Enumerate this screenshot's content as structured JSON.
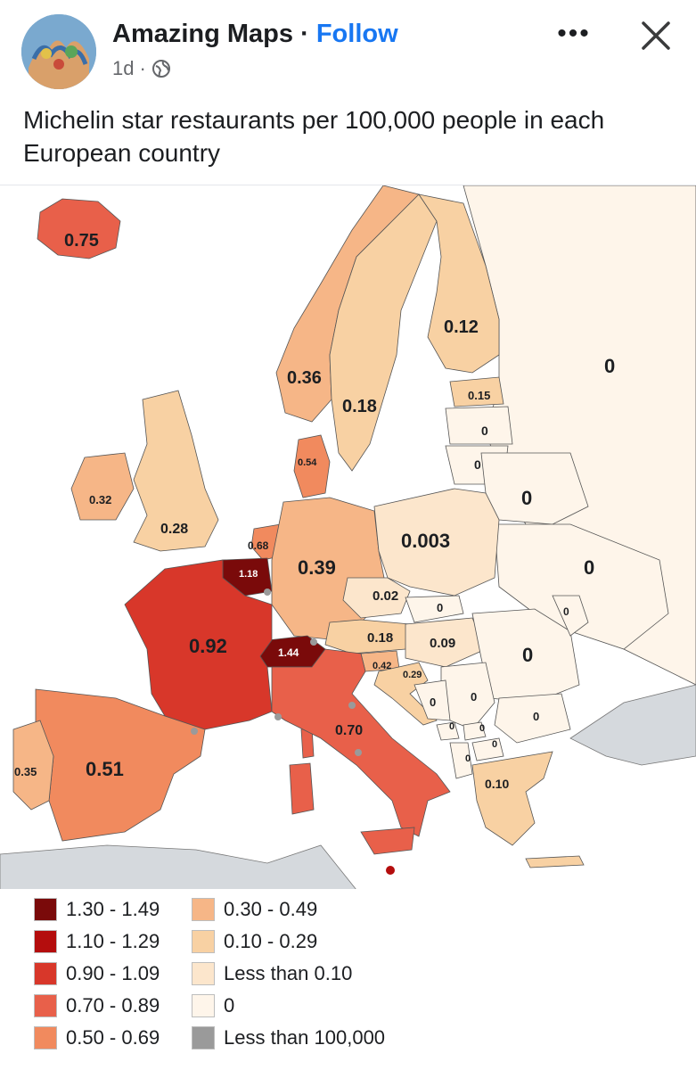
{
  "post": {
    "author": "Amazing Maps",
    "separator": "·",
    "follow_label": "Follow",
    "time": "1d",
    "time_separator": "·",
    "privacy_icon": "globe-icon",
    "more_icon": "more-icon",
    "more_label": "•••",
    "close_icon": "close-icon",
    "caption": "Michelin star restaurants per 100,000 people in each European country"
  },
  "map": {
    "labels": [
      {
        "id": "iceland",
        "text": "0.75"
      },
      {
        "id": "norway",
        "text": "0.36"
      },
      {
        "id": "sweden",
        "text": "0.18"
      },
      {
        "id": "finland",
        "text": "0.12"
      },
      {
        "id": "russia",
        "text": "0"
      },
      {
        "id": "estonia",
        "text": "0.15"
      },
      {
        "id": "latvia",
        "text": "0"
      },
      {
        "id": "lithuania",
        "text": "0"
      },
      {
        "id": "denmark",
        "text": "0.54"
      },
      {
        "id": "ireland",
        "text": "0.32"
      },
      {
        "id": "uk",
        "text": "0.28"
      },
      {
        "id": "netherlands",
        "text": "0.68"
      },
      {
        "id": "belgium",
        "text": "1.18"
      },
      {
        "id": "germany",
        "text": "0.39"
      },
      {
        "id": "poland",
        "text": "0.003"
      },
      {
        "id": "belarus",
        "text": "0"
      },
      {
        "id": "ukraine",
        "text": "0"
      },
      {
        "id": "czechia",
        "text": "0.02"
      },
      {
        "id": "slovakia",
        "text": "0"
      },
      {
        "id": "austria",
        "text": "0.18"
      },
      {
        "id": "hungary",
        "text": "0.09"
      },
      {
        "id": "moldova",
        "text": "0"
      },
      {
        "id": "romania",
        "text": "0"
      },
      {
        "id": "switzerland",
        "text": "1.44"
      },
      {
        "id": "slovenia",
        "text": "0.42"
      },
      {
        "id": "croatia",
        "text": "0.29"
      },
      {
        "id": "bosnia",
        "text": "0"
      },
      {
        "id": "serbia",
        "text": "0"
      },
      {
        "id": "bulgaria",
        "text": "0"
      },
      {
        "id": "montenegro",
        "text": "0"
      },
      {
        "id": "kosovo",
        "text": "0"
      },
      {
        "id": "macedonia",
        "text": "0"
      },
      {
        "id": "albania",
        "text": "0"
      },
      {
        "id": "france",
        "text": "0.92"
      },
      {
        "id": "italy",
        "text": "0.70"
      },
      {
        "id": "spain",
        "text": "0.51"
      },
      {
        "id": "portugal",
        "text": "0.35"
      },
      {
        "id": "greece",
        "text": "0.10"
      }
    ],
    "colors": {
      "c1": "#7a0a0a",
      "c2": "#b40d0d",
      "c3": "#d8372a",
      "c4": "#e8604a",
      "c5": "#f18a5e",
      "c6": "#f6b687",
      "c7": "#f8d1a3",
      "c8": "#fce6cc",
      "c9": "#fef5ea",
      "c10": "#9a9a9a",
      "sea": "#ffffff",
      "other": "#d5d9dd"
    }
  },
  "legend": {
    "items": [
      {
        "label": "1.30 - 1.49",
        "color": "#7a0a0a"
      },
      {
        "label": "1.10 - 1.29",
        "color": "#b40d0d"
      },
      {
        "label": "0.90 - 1.09",
        "color": "#d8372a"
      },
      {
        "label": "0.70 - 0.89",
        "color": "#e8604a"
      },
      {
        "label": "0.50 - 0.69",
        "color": "#f18a5e"
      },
      {
        "label": "0.30 - 0.49",
        "color": "#f6b687"
      },
      {
        "label": "0.10 - 0.29",
        "color": "#f8d1a3"
      },
      {
        "label": "Less than 0.10",
        "color": "#fce6cc"
      },
      {
        "label": "0",
        "color": "#fef5ea"
      },
      {
        "label": "Less than 100,000",
        "color": "#9a9a9a"
      }
    ]
  }
}
